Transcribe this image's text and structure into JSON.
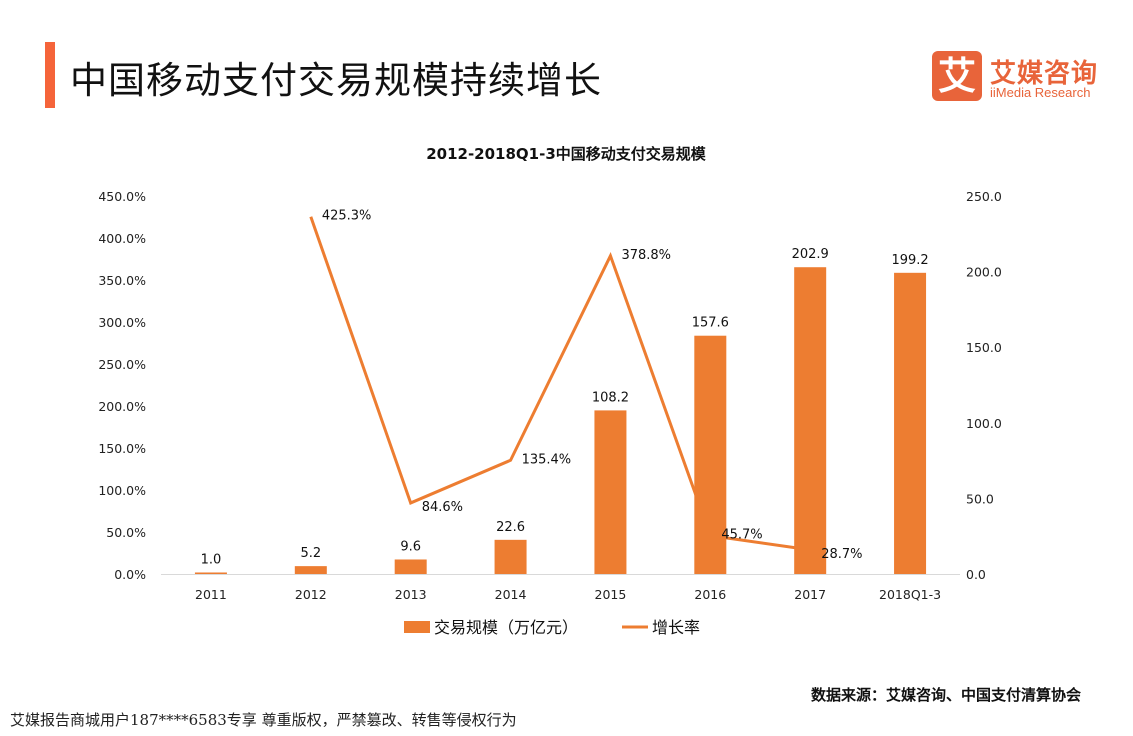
{
  "header": {
    "title": "中国移动支付交易规模持续增长"
  },
  "logo": {
    "cn": "艾媒咨询",
    "en": "iiMedia Research",
    "glyph": "艾"
  },
  "footer": {
    "source": "数据来源：艾媒咨询、中国支付清算协会",
    "watermark": "艾媒报告商城用户187****6583专享 尊重版权，严禁篡改、转售等侵权行为"
  },
  "colors": {
    "accent": "#F5643A",
    "bar": "#ED7D31",
    "line": "#ED7D31"
  },
  "chart_data": {
    "type": "bar+line",
    "title": "2012-2018Q1-3中国移动支付交易规模",
    "categories": [
      "2011",
      "2012",
      "2013",
      "2014",
      "2015",
      "2016",
      "2017",
      "2018Q1-3"
    ],
    "series": [
      {
        "name": "交易规模（万亿元）",
        "type": "bar",
        "axis": "right",
        "values": [
          1.0,
          5.2,
          9.6,
          22.6,
          108.2,
          157.6,
          202.9,
          199.2
        ],
        "labels": [
          "1.0",
          "5.2",
          "9.6",
          "22.6",
          "108.2",
          "157.6",
          "202.9",
          "199.2"
        ]
      },
      {
        "name": "增长率",
        "type": "line",
        "axis": "left",
        "values": [
          null,
          425.3,
          84.6,
          135.4,
          378.8,
          45.7,
          28.7,
          null
        ],
        "labels": [
          null,
          "425.3%",
          "84.6%",
          "135.4%",
          "378.8%",
          "45.7%",
          "28.7%",
          null
        ]
      }
    ],
    "left_axis": {
      "ylim": [
        0,
        450
      ],
      "ticks": [
        "0.0%",
        "50.0%",
        "100.0%",
        "150.0%",
        "200.0%",
        "250.0%",
        "300.0%",
        "350.0%",
        "400.0%",
        "450.0%"
      ]
    },
    "right_axis": {
      "ylim": [
        0,
        250
      ],
      "ticks": [
        "0.0",
        "50.0",
        "100.0",
        "150.0",
        "200.0",
        "250.0"
      ]
    },
    "grid": false,
    "legend": "bottom"
  }
}
